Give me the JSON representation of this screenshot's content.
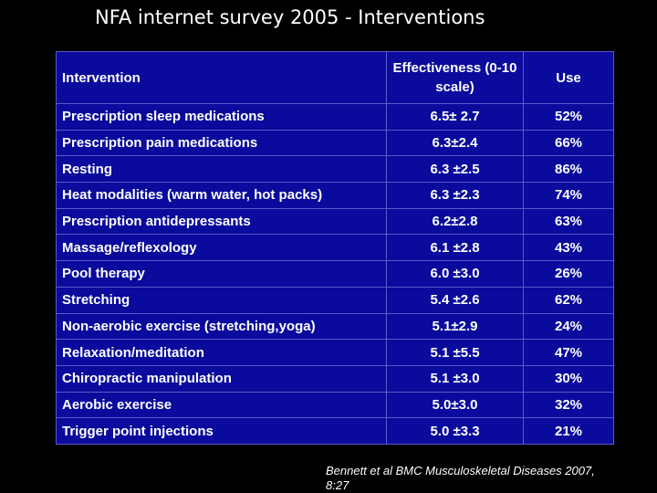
{
  "title": "NFA internet survey 2005 - Interventions",
  "table": {
    "headers": {
      "intervention": "Intervention",
      "effectiveness": "Effectiveness (0-10 scale)",
      "use": "Use"
    },
    "rows": [
      {
        "intervention": "Prescription sleep medications",
        "effectiveness": "6.5± 2.7",
        "use": "52%"
      },
      {
        "intervention": "Prescription pain medications",
        "effectiveness": "6.3±2.4",
        "use": "66%"
      },
      {
        "intervention": "Resting",
        "effectiveness": "6.3 ±2.5",
        "use": "86%"
      },
      {
        "intervention": "Heat modalities (warm water, hot packs)",
        "effectiveness": "6.3 ±2.3",
        "use": "74%"
      },
      {
        "intervention": "Prescription antidepressants",
        "effectiveness": "6.2±2.8",
        "use": "63%"
      },
      {
        "intervention": "Massage/reflexology",
        "effectiveness": "6.1 ±2.8",
        "use": "43%"
      },
      {
        "intervention": "Pool therapy",
        "effectiveness": "6.0 ±3.0",
        "use": "26%"
      },
      {
        "intervention": "Stretching",
        "effectiveness": "5.4 ±2.6",
        "use": "62%"
      },
      {
        "intervention": "Non-aerobic exercise (stretching,yoga)",
        "effectiveness": "5.1±2.9",
        "use": "24%"
      },
      {
        "intervention": "Relaxation/meditation",
        "effectiveness": "5.1 ±5.5",
        "use": "47%"
      },
      {
        "intervention": "Chiropractic manipulation",
        "effectiveness": "5.1 ±3.0",
        "use": "30%"
      },
      {
        "intervention": "Aerobic exercise",
        "effectiveness": "5.0±3.0",
        "use": "32%"
      },
      {
        "intervention": "Trigger point injections",
        "effectiveness": "5.0 ±3.3",
        "use": "21%"
      }
    ]
  },
  "citation": "Bennett et al BMC Musculoskeletal Diseases 2007, 8:27",
  "colors": {
    "background": "#000000",
    "table_fill": "#0a0a9c",
    "grid_line": "#5a5ac8",
    "text": "#ffffff"
  }
}
